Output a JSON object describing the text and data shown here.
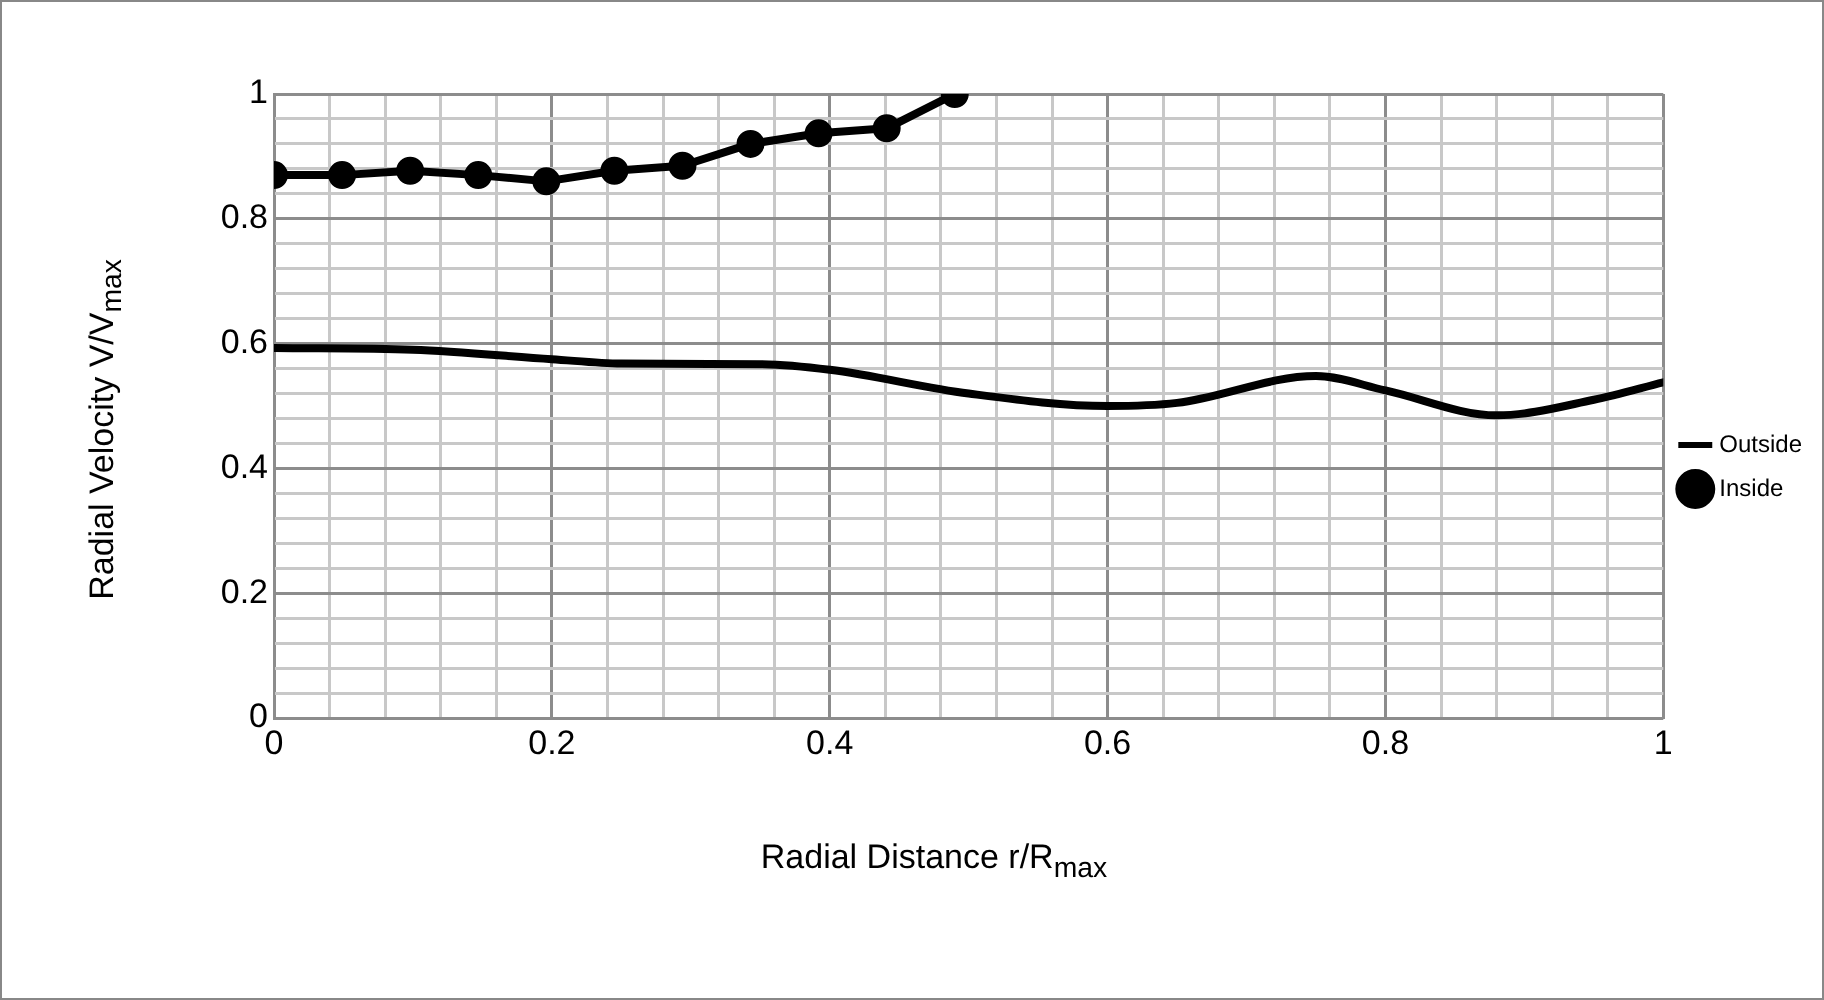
{
  "chart_data": {
    "type": "line",
    "xlabel": "Radial Distance r/R$_{max}$",
    "ylabel": "Radial Velocity V/V$_{max}$",
    "xlim": [
      0,
      1
    ],
    "ylim": [
      0,
      1
    ],
    "xticks": [
      0,
      {
        "value": 0.04,
        "label": null
      },
      {
        "value": 0.08,
        "label": null
      },
      {
        "value": 0.12,
        "label": null
      },
      {
        "value": 0.16,
        "label": null
      },
      0.2,
      {
        "value": 0.24,
        "label": null
      },
      {
        "value": 0.28,
        "label": null
      },
      {
        "value": 0.32,
        "label": null
      },
      {
        "value": 0.36,
        "label": null
      },
      0.4,
      {
        "value": 0.44,
        "label": null
      },
      {
        "value": 0.48,
        "label": null
      },
      {
        "value": 0.52,
        "label": null
      },
      {
        "value": 0.56,
        "label": null
      },
      0.6,
      {
        "value": 0.64,
        "label": null
      },
      {
        "value": 0.68,
        "label": null
      },
      {
        "value": 0.72,
        "label": null
      },
      {
        "value": 0.76,
        "label": null
      },
      0.8,
      {
        "value": 0.84,
        "label": null
      },
      {
        "value": 0.88,
        "label": null
      },
      {
        "value": 0.92,
        "label": null
      },
      {
        "value": 0.96,
        "label": null
      },
      1
    ],
    "yticks": [
      0,
      {
        "value": 0.04,
        "label": null
      },
      {
        "value": 0.08,
        "label": null
      },
      {
        "value": 0.12,
        "label": null
      },
      {
        "value": 0.16,
        "label": null
      },
      0.2,
      {
        "value": 0.24,
        "label": null
      },
      {
        "value": 0.28,
        "label": null
      },
      {
        "value": 0.32,
        "label": null
      },
      {
        "value": 0.36,
        "label": null
      },
      0.4,
      {
        "value": 0.44,
        "label": null
      },
      {
        "value": 0.48,
        "label": null
      },
      {
        "value": 0.52,
        "label": null
      },
      {
        "value": 0.56,
        "label": null
      },
      0.6,
      {
        "value": 0.64,
        "label": null
      },
      {
        "value": 0.68,
        "label": null
      },
      {
        "value": 0.72,
        "label": null
      },
      {
        "value": 0.76,
        "label": null
      },
      0.8,
      {
        "value": 0.84,
        "label": null
      },
      {
        "value": 0.88,
        "label": null
      },
      {
        "value": 0.92,
        "label": null
      },
      {
        "value": 0.96,
        "label": null
      },
      1
    ],
    "grid": true,
    "legend": "right",
    "series": [
      {
        "name": "Outside",
        "color": "#000000",
        "marker": "none",
        "x": [
          0,
          0.1,
          0.2,
          0.25,
          0.35,
          0.4,
          0.5,
          0.6,
          0.65,
          0.75,
          0.8,
          0.88,
          0.95,
          1
        ],
        "values": [
          0.593,
          0.59,
          0.575,
          0.568,
          0.567,
          0.558,
          0.52,
          0.5,
          0.505,
          0.548,
          0.525,
          0.485,
          0.51,
          0.538
        ]
      },
      {
        "name": "Inside",
        "color": "#000000",
        "marker": "circle",
        "x": [
          0,
          0.049,
          0.098,
          0.147,
          0.196,
          0.245,
          0.294,
          0.343,
          0.392,
          0.441,
          0.49
        ],
        "values": [
          0.87,
          0.87,
          0.877,
          0.87,
          0.86,
          0.877,
          0.885,
          0.92,
          0.937,
          0.945,
          1.0
        ]
      }
    ]
  }
}
